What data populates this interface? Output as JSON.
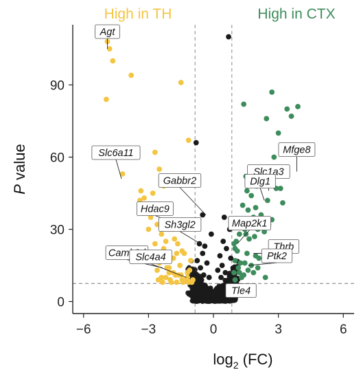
{
  "chart_data": {
    "type": "scatter",
    "title": "",
    "xlabel": "log",
    "xlabel_sub": "2",
    "xlabel_tail": " (FC)",
    "ylabel_italic": "P",
    "ylabel_rest": " value",
    "xlim": [
      -6.5,
      6.5
    ],
    "ylim": [
      -5,
      115
    ],
    "xticks": [
      -6,
      -3,
      0,
      3,
      6
    ],
    "yticks": [
      0,
      30,
      60,
      90
    ],
    "threshold_lines": {
      "x": [
        -0.85,
        0.85
      ],
      "y": 7.5
    },
    "group_labels": [
      {
        "text": "High in TH",
        "color": "#f4c542"
      },
      {
        "text": "High in CTX",
        "color": "#3d8c5c"
      }
    ],
    "colors": {
      "TH": "#f4c542",
      "CTX": "#3d8c5c",
      "ns": "#1a1a1a"
    },
    "series": [
      {
        "group": "TH",
        "x": [
          -4.9,
          -4.8,
          -4.65,
          -3.8,
          -1.5,
          -4.95,
          -1.15,
          -2.7,
          -4.2,
          -2.5,
          -2.3,
          -3.35,
          -3.2,
          -2.8,
          -2.7,
          -2.55,
          -3.4,
          -2.9,
          -3.0,
          -2.6,
          -2.4,
          -2.2,
          -1.9,
          -1.7,
          -1.8,
          -1.45,
          -2.05,
          -1.25,
          -2.7,
          -2.3,
          -2.0,
          -1.65,
          -1.35,
          -1.05,
          -2.5,
          -2.15,
          -1.85,
          -1.55,
          -1.2,
          -2.4,
          -2.05,
          -1.75,
          -1.45,
          -1.1,
          -2.55,
          -2.2,
          -1.95,
          -1.6,
          -1.3,
          -1.0,
          -2.6,
          -2.35,
          -2.0,
          -1.7,
          -1.4,
          -1.15,
          -1.85,
          -1.5,
          -1.2,
          -0.95
        ],
        "y": [
          108,
          105,
          100,
          94,
          91,
          84,
          67,
          62,
          53,
          55,
          48,
          46,
          43,
          45,
          40,
          38,
          42,
          35,
          30,
          32,
          28,
          25,
          30,
          20,
          26,
          21,
          14,
          33,
          24,
          22,
          18,
          24,
          20,
          17,
          16,
          14,
          18,
          15,
          12,
          10,
          12,
          11,
          9,
          13,
          9,
          10,
          8,
          11,
          9,
          8,
          13,
          8,
          9,
          8,
          8,
          8,
          12,
          11,
          10,
          9
        ]
      },
      {
        "group": "CTX",
        "x": [
          2.7,
          3.9,
          3.4,
          3.6,
          1.4,
          2.45,
          3.0,
          2.8,
          2.25,
          2.55,
          1.5,
          1.7,
          2.3,
          2.0,
          2.9,
          3.1,
          1.55,
          1.75,
          1.35,
          2.5,
          3.2,
          1.95,
          1.6,
          2.2,
          1.85,
          1.2,
          2.7,
          2.2,
          2.55,
          1.25,
          1.45,
          2.05,
          2.35,
          1.5,
          1.2,
          1.9,
          1.65,
          1.05,
          0.95,
          1.0,
          1.1,
          1.55,
          1.95,
          2.1,
          1.0,
          1.25,
          1.45,
          1.75,
          2.05,
          1.15,
          1.6,
          0.95,
          1.2,
          1.85,
          1.4,
          1.3,
          2.4,
          1.0
        ],
        "y": [
          87,
          81,
          80,
          77,
          82,
          76,
          70,
          60,
          55,
          53,
          52,
          50,
          50,
          48,
          47,
          47,
          46,
          44,
          40,
          42,
          41,
          39,
          38,
          36,
          35,
          34,
          34,
          33,
          32,
          31,
          30,
          30,
          29,
          28,
          28,
          27,
          26,
          25,
          24,
          22,
          21,
          20,
          19,
          18,
          17,
          16,
          16,
          15,
          14,
          14,
          13,
          12,
          12,
          12,
          11,
          10,
          10,
          9
        ]
      },
      {
        "group": "ns",
        "x": [
          0.7,
          -0.8,
          -0.5,
          0.5,
          -0.7,
          0.75,
          -0.1,
          0.45,
          -0.65,
          -0.4,
          0.6,
          -0.5,
          0.3,
          0.8,
          -0.75,
          -0.3,
          0.4,
          -0.6,
          0.2,
          0.55,
          -0.45,
          0.35,
          -0.2,
          0.7,
          -0.55
        ],
        "y": [
          110,
          66,
          36,
          35,
          32,
          30,
          28,
          25,
          24,
          23,
          22,
          20,
          19,
          18,
          17,
          16,
          15,
          14,
          13,
          12,
          11,
          10,
          10,
          9,
          9
        ]
      }
    ],
    "annotations": [
      {
        "gene": "Agt",
        "x": -4.9,
        "y": 105
      },
      {
        "gene": "Slc6a11",
        "x": -4.25,
        "y": 51
      },
      {
        "gene": "Gabbr2",
        "x": -0.35,
        "y": 36
      },
      {
        "gene": "Hdac9",
        "x": -1.05,
        "y": 30
      },
      {
        "gene": "Camk2d",
        "x": -2.35,
        "y": 14
      },
      {
        "gene": "Slc4a4",
        "x": -1.25,
        "y": 10
      },
      {
        "gene": "Sh3gl2",
        "x": -0.6,
        "y": 24
      },
      {
        "gene": "Map2k1",
        "x": 1.1,
        "y": 24
      },
      {
        "gene": "Tle4",
        "x": 0.7,
        "y": 8
      },
      {
        "gene": "Mfge8",
        "x": 3.85,
        "y": 54
      },
      {
        "gene": "Slc1a3",
        "x": 2.55,
        "y": 46
      },
      {
        "gene": "Dlg1",
        "x": 2.35,
        "y": 42
      },
      {
        "gene": "Thrb",
        "x": 1.85,
        "y": 20
      },
      {
        "gene": "Ptk2",
        "x": 1.6,
        "y": 15
      }
    ]
  }
}
